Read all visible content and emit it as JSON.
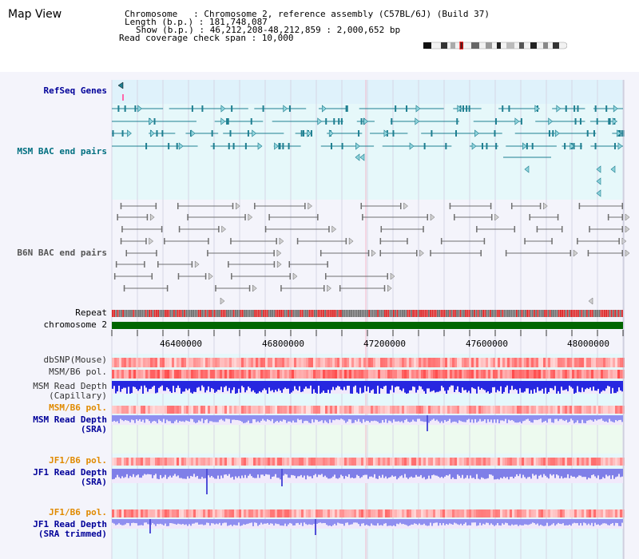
{
  "app": {
    "title": "Map View"
  },
  "info": {
    "line1": "Chromosome   : Chromosome 2, reference assembly (C57BL/6J) (Build 37)",
    "line2": "Length (b.p.) : 181,748,087",
    "line3": "Show (b.p.) : 46,212,208-48,212,859 : 2,000,652 bp",
    "line4": "Read coverage check span : 10,000"
  },
  "tracks": {
    "refseq": "RefSeq Genes",
    "msm_bac": "MSM BAC end pairs",
    "b6n_bac": "B6N BAC end pairs",
    "repeat": "Repeat",
    "chromosome": "chromosome 2",
    "dbsnp": "dbSNP(Mouse)",
    "msm_b6_pol": "MSM/B6 pol.",
    "msm_read_depth_cap": "MSM Read Depth\n(Capillary)",
    "msm_b6_pol2": "MSM/B6 pol.",
    "msm_read_depth_sra": "MSM Read Depth\n(SRA)",
    "jf1_b6_pol": "JF1/B6 pol.",
    "jf1_read_depth_sra": "JF1 Read Depth\n(SRA)",
    "jf1_b6_pol2": "JF1/B6 pol.",
    "jf1_read_depth_trim": "JF1 Read Depth\n(SRA trimmed)"
  },
  "axis": {
    "ticks": [
      "46400000",
      "46800000",
      "47200000",
      "47600000",
      "48000000"
    ]
  },
  "colors": {
    "refseq_bg": "#dff2fb",
    "gene_line": "#1f7f91",
    "bac_gray": "#707070",
    "chromosome": "#006600",
    "repeat_red": "#dd2222",
    "repeat_gray": "#6c6c6c",
    "snp_red": "#ff4a4a",
    "depth_blue": "#2727e0",
    "depth_sra": "#8f8ff0",
    "orange_label": "#e08a00",
    "navy_label": "#000099",
    "teal_label": "#006f80"
  }
}
